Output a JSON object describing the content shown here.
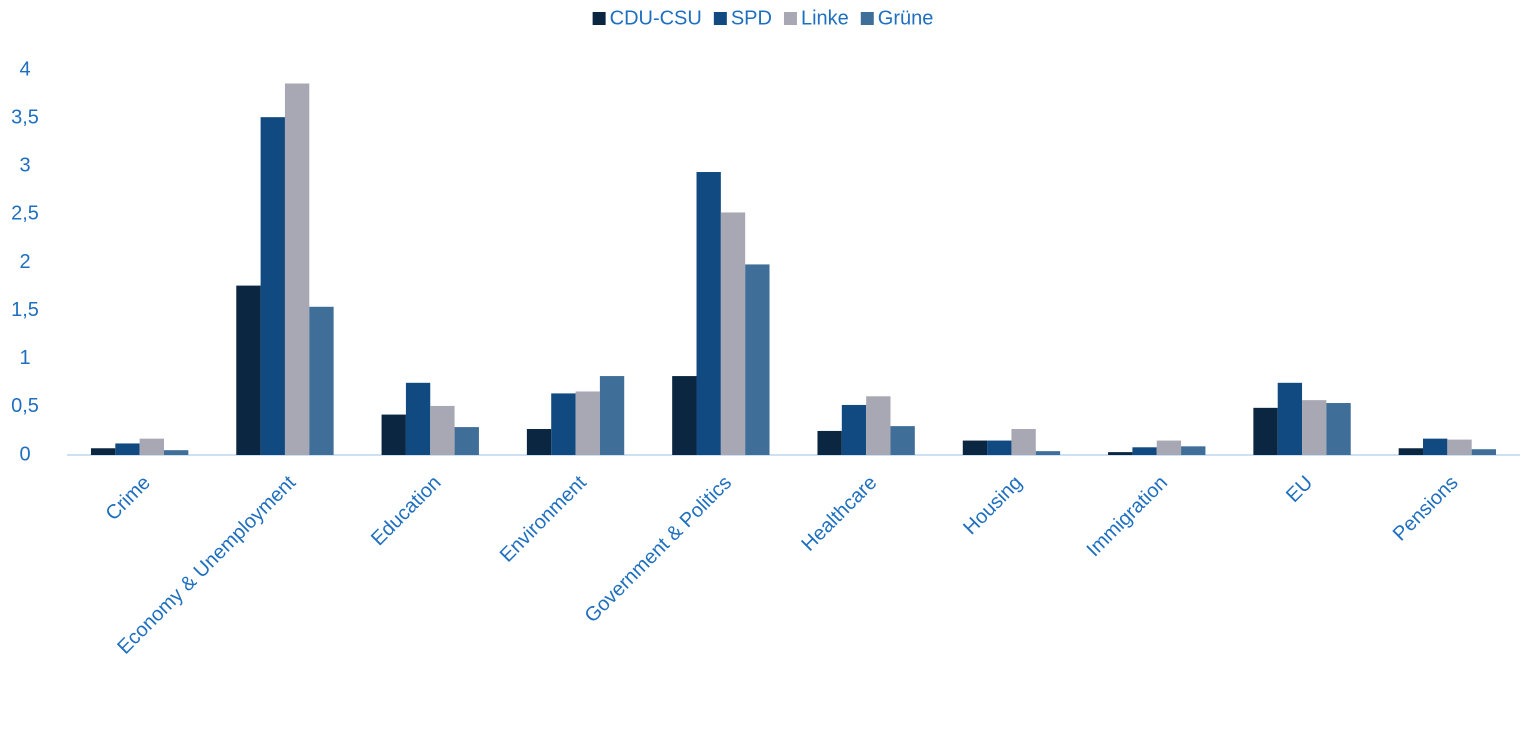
{
  "chart_data": {
    "type": "bar",
    "categories": [
      "Crime",
      "Economy & Unemployment",
      "Education",
      "Environment",
      "Government & Politics",
      "Healthcare",
      "Housing",
      "Immigration",
      "EU",
      "Pensions"
    ],
    "series": [
      {
        "name": "CDU-CSU",
        "color": "#0b2641",
        "values": [
          0.07,
          1.76,
          0.42,
          0.27,
          0.82,
          0.25,
          0.15,
          0.03,
          0.49,
          0.07
        ]
      },
      {
        "name": "SPD",
        "color": "#114a80",
        "values": [
          0.12,
          3.51,
          0.75,
          0.64,
          2.94,
          0.52,
          0.15,
          0.08,
          0.75,
          0.17
        ]
      },
      {
        "name": "Linke",
        "color": "#a8a8b4",
        "values": [
          0.17,
          3.86,
          0.51,
          0.66,
          2.52,
          0.61,
          0.27,
          0.15,
          0.57,
          0.16
        ]
      },
      {
        "name": "Grüne",
        "color": "#3f6e99",
        "values": [
          0.05,
          1.54,
          0.29,
          0.82,
          1.98,
          0.3,
          0.04,
          0.09,
          0.54,
          0.06
        ]
      }
    ],
    "ylim": [
      0,
      4
    ],
    "yticks": [
      0,
      {
        "value": 0.5,
        "label": "0,5"
      },
      1,
      {
        "value": 1.5,
        "label": "1,5"
      },
      2,
      {
        "value": 2.5,
        "label": "2,5"
      },
      3,
      {
        "value": 3.5,
        "label": "3,5"
      },
      4
    ],
    "legend": "top"
  }
}
